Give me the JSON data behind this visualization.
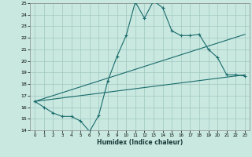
{
  "xlabel": "Humidex (Indice chaleur)",
  "xlim": [
    -0.5,
    23.5
  ],
  "ylim": [
    14,
    25
  ],
  "xticks": [
    0,
    1,
    2,
    3,
    4,
    5,
    6,
    7,
    8,
    9,
    10,
    11,
    12,
    13,
    14,
    15,
    16,
    17,
    18,
    19,
    20,
    21,
    22,
    23
  ],
  "yticks": [
    14,
    15,
    16,
    17,
    18,
    19,
    20,
    21,
    22,
    23,
    24,
    25
  ],
  "bg_color": "#c8e8e0",
  "grid_color": "#a0c8c0",
  "line_color": "#1a6b6b",
  "line1_x": [
    0,
    1,
    2,
    3,
    4,
    5,
    6,
    7,
    8,
    9,
    10,
    11,
    12,
    13,
    14,
    15,
    16,
    17,
    18,
    19,
    20,
    21,
    22,
    23
  ],
  "line1_y": [
    16.5,
    16.0,
    15.5,
    15.2,
    15.2,
    14.8,
    13.9,
    15.3,
    18.3,
    20.4,
    22.2,
    25.1,
    23.7,
    25.2,
    24.6,
    22.6,
    22.2,
    22.2,
    22.3,
    21.0,
    20.3,
    18.8,
    18.8,
    18.7
  ],
  "line2_x": [
    0,
    23
  ],
  "line2_y": [
    16.5,
    18.8
  ],
  "line3_x": [
    0,
    23
  ],
  "line3_y": [
    16.5,
    22.3
  ]
}
